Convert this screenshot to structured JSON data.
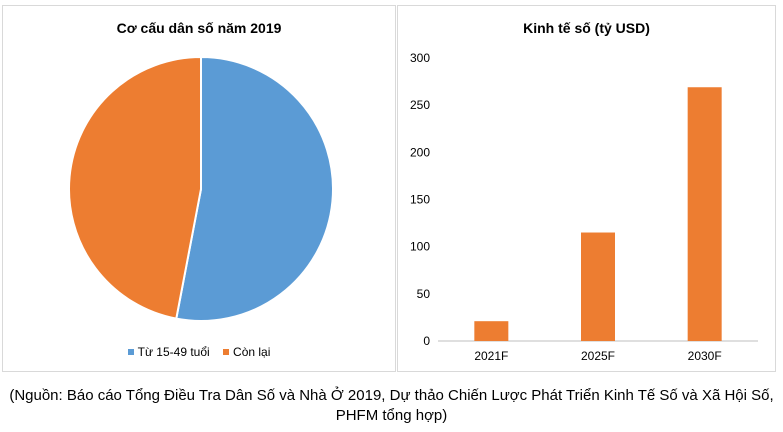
{
  "chart_data": [
    {
      "type": "pie",
      "title": "Cơ cấu dân số năm 2019",
      "labels": [
        "Từ 15-49 tuổi",
        "Còn lại"
      ],
      "values": [
        53,
        47
      ],
      "colors": [
        "#5b9bd5",
        "#ed7d31"
      ],
      "legend": "bottom"
    },
    {
      "type": "bar",
      "title": "Kinh tế số (tỷ USD)",
      "categories": [
        "2021F",
        "2025F",
        "2030F"
      ],
      "values": [
        21,
        115,
        269
      ],
      "ylim": [
        0,
        300
      ],
      "yticks": [
        "0",
        "50",
        "100",
        "150",
        "200",
        "250",
        "300"
      ],
      "color": "#ed7d31",
      "grid": false
    }
  ],
  "caption": "(Nguồn: Báo cáo Tổng Điều Tra Dân Số và Nhà Ở 2019, Dự thảo Chiến Lược Phát Triển Kinh Tế Số và Xã Hội Số, PHFM tổng hợp)"
}
